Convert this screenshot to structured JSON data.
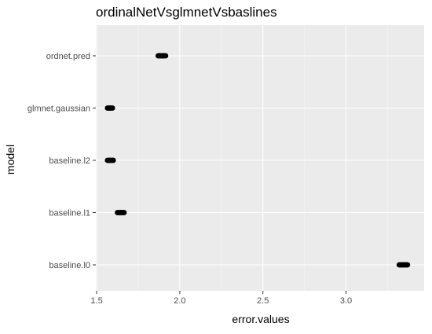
{
  "chart_data": {
    "type": "scatter",
    "title": "ordinalNetVsglmnetVsbaslines",
    "xlabel": "error.values",
    "ylabel": "model",
    "xlim": [
      1.495,
      3.47
    ],
    "xticks": [
      1.5,
      2.0,
      2.5,
      3.0
    ],
    "xtick_labels": [
      "1.5",
      "2.0",
      "2.5",
      "3.0"
    ],
    "categories": [
      "ordnet.pred",
      "glmnet.gaussian",
      "baseline.l2",
      "baseline.l1",
      "baseline.l0"
    ],
    "series": [
      {
        "points": [
          {
            "model": "ordnet.pred",
            "x": [
              1.87,
              1.875,
              1.88,
              1.885,
              1.89,
              1.895,
              1.9,
              1.905,
              1.91,
              1.915
            ]
          },
          {
            "model": "glmnet.gaussian",
            "x": [
              1.565,
              1.57,
              1.575,
              1.58,
              1.585,
              1.59,
              1.595
            ]
          },
          {
            "model": "baseline.l2",
            "x": [
              1.565,
              1.57,
              1.575,
              1.58,
              1.585,
              1.59,
              1.595,
              1.6
            ]
          },
          {
            "model": "baseline.l1",
            "x": [
              1.625,
              1.63,
              1.635,
              1.64,
              1.645,
              1.65,
              1.655,
              1.66,
              1.665
            ]
          },
          {
            "model": "baseline.l0",
            "x": [
              3.32,
              3.325,
              3.33,
              3.335,
              3.34,
              3.345,
              3.35,
              3.355,
              3.36,
              3.365,
              3.37
            ]
          }
        ]
      }
    ],
    "grid": true,
    "colors": {
      "panel": "#ebebeb",
      "grid_major": "#ffffff",
      "point": "#000000"
    }
  }
}
